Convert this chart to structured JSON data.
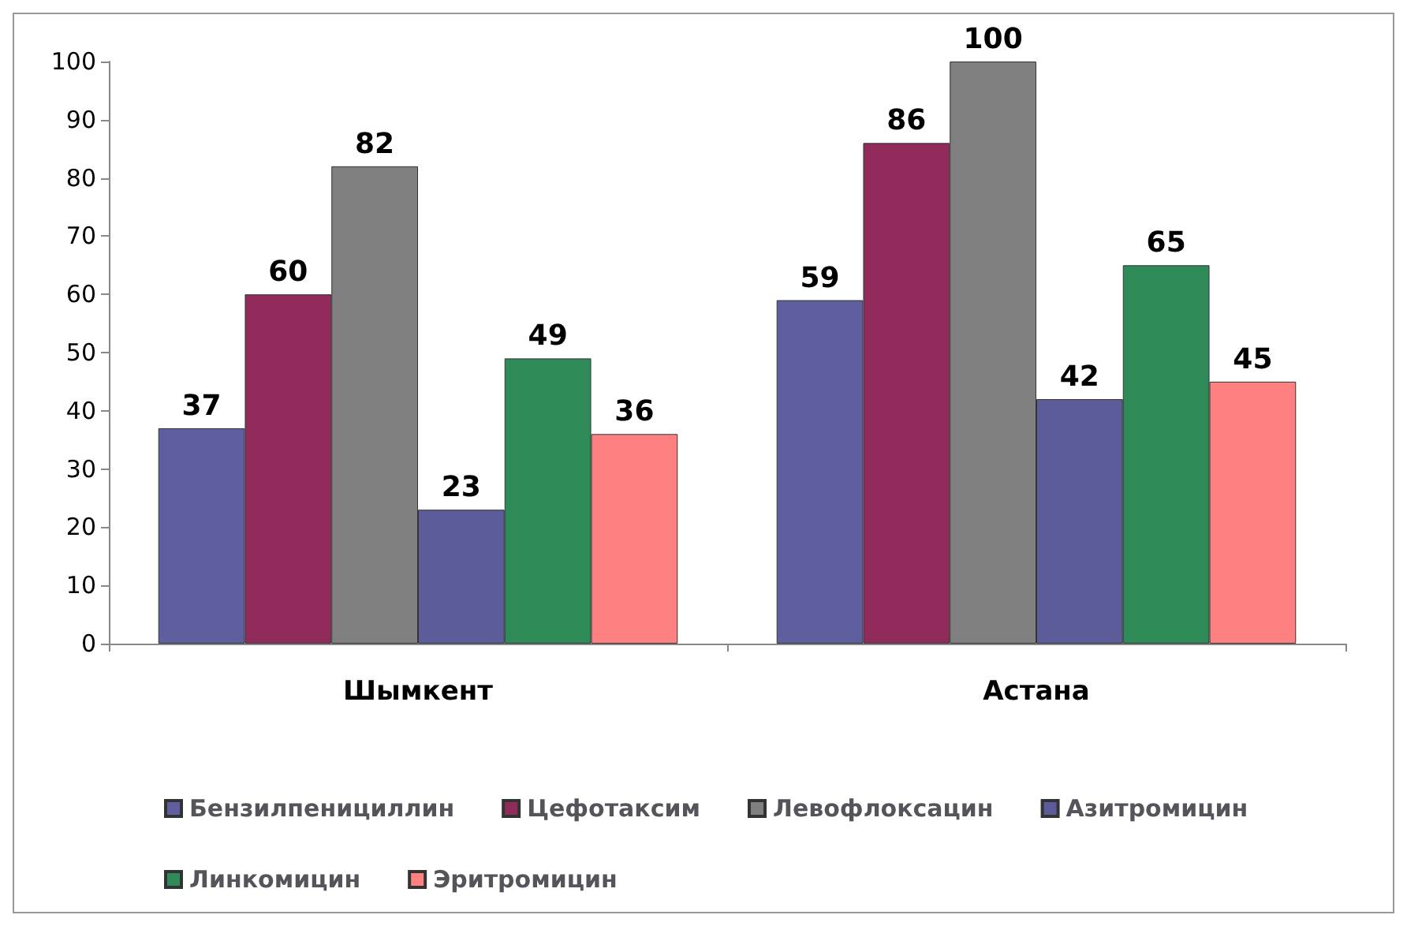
{
  "chart_data": {
    "type": "bar",
    "categories": [
      "Шымкент",
      "Астана"
    ],
    "series": [
      {
        "name": "Бензилпенициллин",
        "color": "#5f5f9f",
        "values": [
          37,
          59
        ]
      },
      {
        "name": "Цефотаксим",
        "color": "#8f2a5a",
        "values": [
          60,
          86
        ]
      },
      {
        "name": "Левофлоксацин",
        "color": "#808080",
        "values": [
          82,
          100
        ]
      },
      {
        "name": "Азитромицин",
        "color": "#5c5c9a",
        "values": [
          23,
          42
        ]
      },
      {
        "name": "Линкомицин",
        "color": "#2e8b57",
        "values": [
          49,
          65
        ]
      },
      {
        "name": "Эритромицин",
        "color": "#ff8080",
        "values": [
          36,
          45
        ]
      }
    ],
    "ylim": [
      0,
      100
    ],
    "yticks": [
      0,
      10,
      20,
      30,
      40,
      50,
      60,
      70,
      80,
      90,
      100
    ],
    "grid": false,
    "legend": "bottom",
    "data_labels": true
  }
}
